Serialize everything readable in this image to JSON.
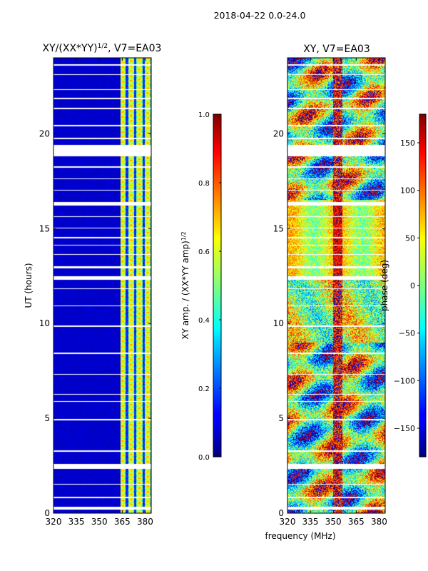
{
  "figure": {
    "suptitle": "2018-04-22 0.0-24.0",
    "shared_xlabel": "frequency (MHz)"
  },
  "chart_data": [
    {
      "type": "heatmap",
      "title_main": "XY/(XX*YY)",
      "title_sup": "1/2",
      "title_tail": ", V7=EA03",
      "ylabel": "UT (hours)",
      "xlim": [
        320,
        384
      ],
      "ylim": [
        0,
        24
      ],
      "xticks": [
        320,
        335,
        350,
        365,
        380
      ],
      "yticks": [
        0,
        5,
        10,
        15,
        20
      ],
      "colorbar": {
        "label_main": "XY amp. / (XX*YY amp)",
        "label_sup": "1/2",
        "range": [
          0.0,
          1.0
        ],
        "ticks": [
          "0.0",
          "0.2",
          "0.4",
          "0.6",
          "0.8",
          "1.0"
        ],
        "colormap": "jet"
      },
      "bright_band_mhz": [
        364,
        384
      ],
      "background_value": 0.05,
      "band_value_range": [
        0.35,
        0.75
      ]
    },
    {
      "type": "heatmap",
      "title": "XY, V7=EA03",
      "xlim": [
        320,
        384
      ],
      "ylim": [
        0,
        24
      ],
      "xticks": [
        320,
        335,
        350,
        365,
        380
      ],
      "yticks": [
        0,
        5,
        10,
        15,
        20
      ],
      "colorbar": {
        "label": "phase (deg)",
        "range": [
          -180,
          180
        ],
        "ticks": [
          "−150",
          "−100",
          "−50",
          "0",
          "50",
          "100",
          "150"
        ],
        "tick_values": [
          -150,
          -100,
          -50,
          0,
          50,
          100,
          150
        ],
        "colormap": "jet"
      }
    }
  ],
  "gaps_ut_hours": [
    [
      0.2,
      0.35
    ],
    [
      0.8,
      0.85
    ],
    [
      1.5,
      1.55
    ],
    [
      2.35,
      2.6
    ],
    [
      3.25,
      3.3
    ],
    [
      4.9,
      4.95
    ],
    [
      5.85,
      5.9
    ],
    [
      6.25,
      6.3
    ],
    [
      7.3,
      7.35
    ],
    [
      8.4,
      8.45
    ],
    [
      9.8,
      9.9
    ],
    [
      10.9,
      10.95
    ],
    [
      11.8,
      11.85
    ],
    [
      12.3,
      12.5
    ],
    [
      12.9,
      13.0
    ],
    [
      13.6,
      13.65
    ],
    [
      14.1,
      14.15
    ],
    [
      14.5,
      14.55
    ],
    [
      15.0,
      15.05
    ],
    [
      15.6,
      15.65
    ],
    [
      16.2,
      16.4
    ],
    [
      17.0,
      17.05
    ],
    [
      17.6,
      17.65
    ],
    [
      18.2,
      18.3
    ],
    [
      18.8,
      19.4
    ],
    [
      19.7,
      19.8
    ],
    [
      20.4,
      20.45
    ],
    [
      21.3,
      21.35
    ],
    [
      21.8,
      21.9
    ],
    [
      22.3,
      22.35
    ],
    [
      23.1,
      23.15
    ],
    [
      23.6,
      23.65
    ]
  ]
}
